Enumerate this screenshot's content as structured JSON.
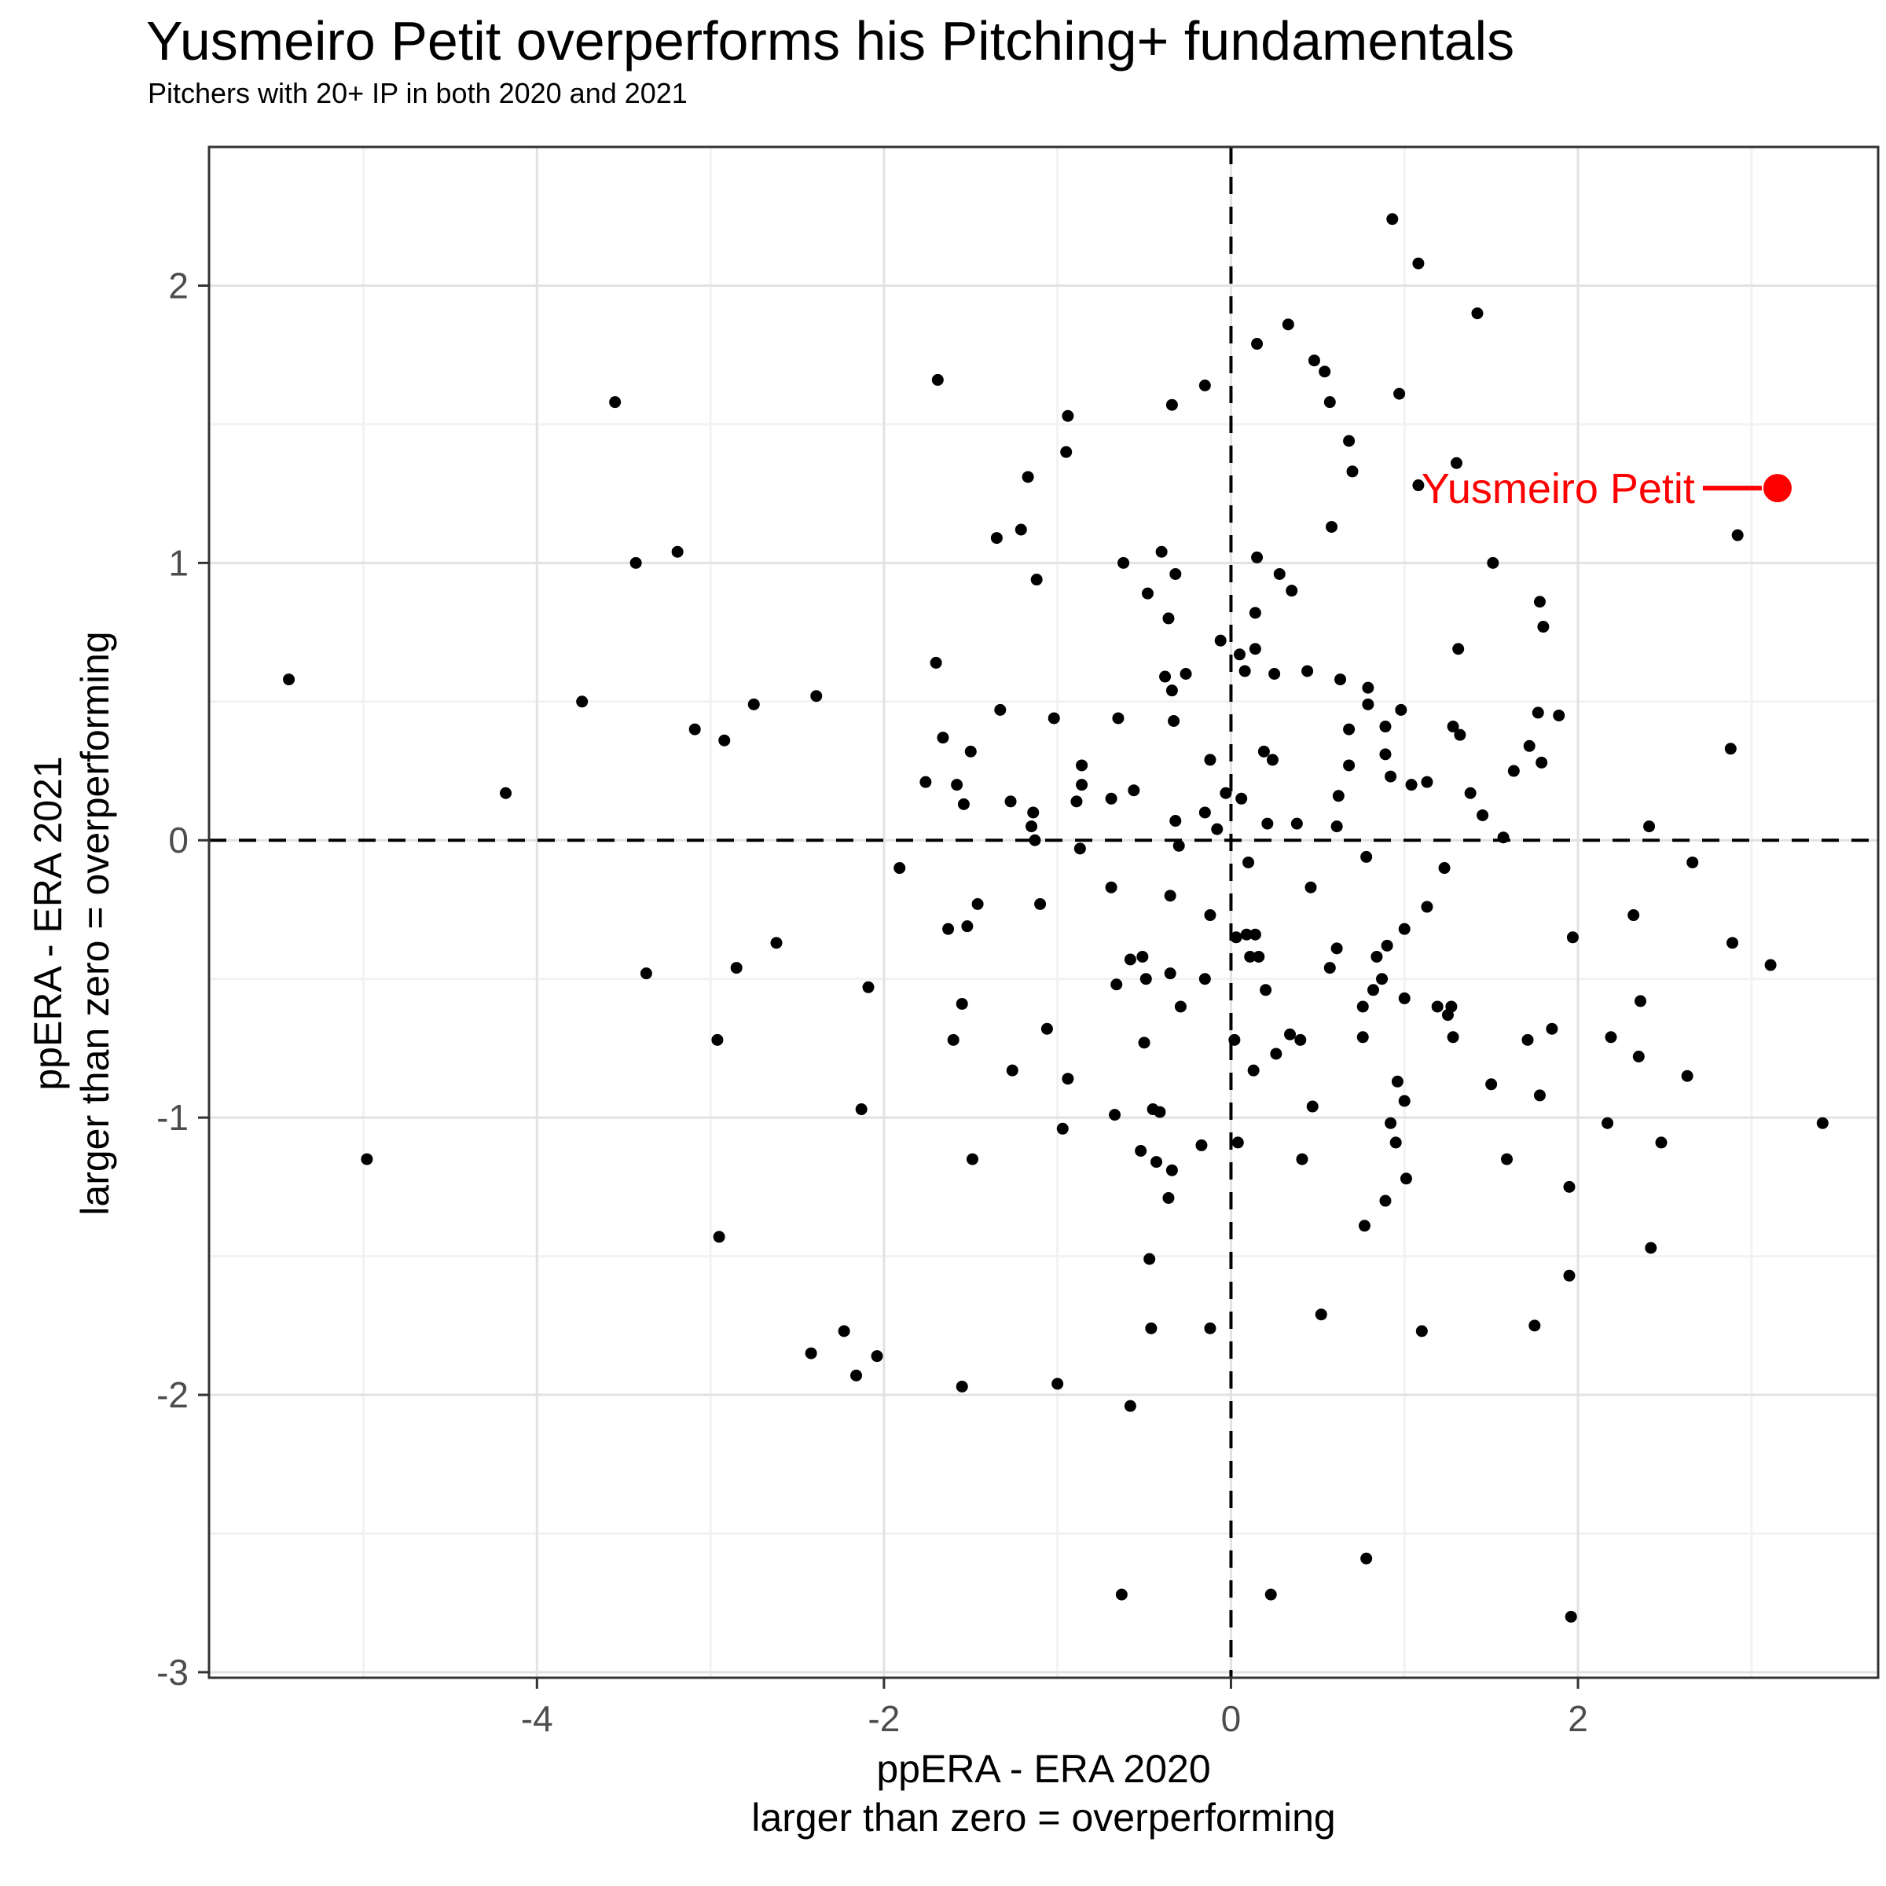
{
  "title": "Yusmeiro Petit overperforms his Pitching+ fundamentals",
  "subtitle": "Pitchers with 20+ IP in both 2020 and 2021",
  "x_axis": {
    "title_line1": "ppERA - ERA 2020",
    "title_line2": "larger than zero = overperforming",
    "tick_labels": [
      "-4",
      "-2",
      "0",
      "2"
    ],
    "ticks": [
      -4,
      -2,
      0,
      2
    ]
  },
  "y_axis": {
    "title_line1": "ppERA - ERA 2021",
    "title_line2": "larger than zero = overperforming",
    "tick_labels": [
      "-3",
      "-2",
      "-1",
      "0",
      "1",
      "2"
    ],
    "ticks": [
      -3,
      -2,
      -1,
      0,
      1,
      2
    ]
  },
  "chart_data": {
    "type": "scatter",
    "title": "Yusmeiro Petit overperforms his Pitching+ fundamentals",
    "subtitle": "Pitchers with 20+ IP in both 2020 and 2021",
    "xlabel": "ppERA - ERA 2020 (larger than zero = overperforming)",
    "ylabel": "ppERA - ERA 2021 (larger than zero = overperforming)",
    "xlim": [
      -5.89,
      3.73
    ],
    "ylim": [
      -3.02,
      2.5
    ],
    "grid": {
      "on": true,
      "major_x": [
        -4,
        -2,
        0,
        2
      ],
      "minor_x": [
        -5,
        -3,
        -1,
        1,
        3
      ],
      "major_y": [
        -3,
        -2,
        -1,
        0,
        1,
        2
      ],
      "minor_y": [
        -2.5,
        -1.5,
        -0.5,
        0.5,
        1.5
      ]
    },
    "reference_lines": {
      "vline_x": 0,
      "hline_y": 0,
      "style": "dashed"
    },
    "colors": {
      "point": "#000000",
      "highlight": "#ff0000",
      "grid_major": "#e2e2e2",
      "grid_minor": "#f2f2f2",
      "panel_border": "#333333",
      "tick_label": "#4d4d4d",
      "background": "#ffffff"
    },
    "highlight": {
      "label": "Yusmeiro Petit",
      "x": 3.15,
      "y": 1.27
    },
    "points": [
      [
        -5.43,
        0.58
      ],
      [
        -4.98,
        -1.15
      ],
      [
        -4.18,
        0.17
      ],
      [
        -3.74,
        0.5
      ],
      [
        -3.55,
        1.58
      ],
      [
        -3.43,
        1.0
      ],
      [
        -3.19,
        1.04
      ],
      [
        -3.09,
        0.4
      ],
      [
        -2.92,
        0.36
      ],
      [
        -2.75,
        0.49
      ],
      [
        -3.37,
        -0.48
      ],
      [
        -2.85,
        -0.46
      ],
      [
        -2.96,
        -0.72
      ],
      [
        -2.95,
        -1.43
      ],
      [
        -2.62,
        -0.37
      ],
      [
        -2.39,
        0.52
      ],
      [
        -2.09,
        -0.53
      ],
      [
        -2.13,
        -0.97
      ],
      [
        -1.91,
        -0.1
      ],
      [
        -2.23,
        -1.77
      ],
      [
        -2.42,
        -1.85
      ],
      [
        -2.16,
        -1.93
      ],
      [
        -2.04,
        -1.86
      ],
      [
        -1.7,
        0.64
      ],
      [
        -1.69,
        1.66
      ],
      [
        -1.66,
        0.37
      ],
      [
        -1.76,
        0.21
      ],
      [
        -1.58,
        0.2
      ],
      [
        -1.54,
        0.13
      ],
      [
        -1.5,
        0.32
      ],
      [
        -1.33,
        0.47
      ],
      [
        -1.27,
        0.14
      ],
      [
        -1.02,
        0.44
      ],
      [
        -1.12,
        0.94
      ],
      [
        -1.17,
        1.31
      ],
      [
        -1.35,
        1.09
      ],
      [
        -1.21,
        1.12
      ],
      [
        -1.14,
        0.1
      ],
      [
        -1.15,
        0.05
      ],
      [
        -1.13,
        0.0
      ],
      [
        -1.46,
        -0.23
      ],
      [
        -1.63,
        -0.32
      ],
      [
        -1.52,
        -0.31
      ],
      [
        -1.1,
        -0.23
      ],
      [
        -1.55,
        -0.59
      ],
      [
        -1.6,
        -0.72
      ],
      [
        -1.06,
        -0.68
      ],
      [
        -1.26,
        -0.83
      ],
      [
        -1.49,
        -1.15
      ],
      [
        -1.55,
        -1.97
      ],
      [
        -1.0,
        -1.96
      ],
      [
        -0.94,
        1.53
      ],
      [
        -0.95,
        1.4
      ],
      [
        -0.62,
        1.0
      ],
      [
        -0.4,
        1.04
      ],
      [
        -0.48,
        0.89
      ],
      [
        -0.32,
        0.96
      ],
      [
        -0.36,
        0.8
      ],
      [
        -0.86,
        0.27
      ],
      [
        -0.86,
        0.2
      ],
      [
        -0.89,
        0.14
      ],
      [
        -0.69,
        0.15
      ],
      [
        -0.56,
        0.18
      ],
      [
        -0.65,
        0.44
      ],
      [
        -0.87,
        -0.03
      ],
      [
        -0.97,
        -1.04
      ],
      [
        -0.94,
        -0.86
      ],
      [
        -0.69,
        -0.17
      ],
      [
        -0.66,
        -0.52
      ],
      [
        -0.58,
        -0.43
      ],
      [
        -0.51,
        -0.42
      ],
      [
        -0.49,
        -0.5
      ],
      [
        -0.38,
        0.59
      ],
      [
        -0.34,
        0.54
      ],
      [
        -0.26,
        0.6
      ],
      [
        -0.33,
        0.43
      ],
      [
        -0.35,
        -0.2
      ],
      [
        -0.35,
        -0.48
      ],
      [
        -0.3,
        -0.02
      ],
      [
        -0.32,
        0.07
      ],
      [
        -0.15,
        0.1
      ],
      [
        -0.12,
        0.29
      ],
      [
        -0.08,
        0.04
      ],
      [
        -0.03,
        0.17
      ],
      [
        -0.12,
        -0.27
      ],
      [
        -0.15,
        -0.5
      ],
      [
        -0.29,
        -0.6
      ],
      [
        -0.5,
        -0.73
      ],
      [
        -0.45,
        -0.97
      ],
      [
        -0.41,
        -0.98
      ],
      [
        -0.67,
        -0.99
      ],
      [
        -0.43,
        -1.16
      ],
      [
        -0.34,
        -1.19
      ],
      [
        -0.52,
        -1.12
      ],
      [
        -0.36,
        -1.29
      ],
      [
        -0.17,
        -1.1
      ],
      [
        -0.47,
        -1.51
      ],
      [
        -0.46,
        -1.76
      ],
      [
        -0.12,
        -1.76
      ],
      [
        -0.58,
        -2.04
      ],
      [
        -0.63,
        -2.72
      ],
      [
        -0.34,
        1.57
      ],
      [
        -0.15,
        1.64
      ],
      [
        0.15,
        1.79
      ],
      [
        0.33,
        1.86
      ],
      [
        0.48,
        1.73
      ],
      [
        0.54,
        1.69
      ],
      [
        0.57,
        1.58
      ],
      [
        0.68,
        1.44
      ],
      [
        0.7,
        1.33
      ],
      [
        0.58,
        1.13
      ],
      [
        0.15,
        1.02
      ],
      [
        0.28,
        0.96
      ],
      [
        0.35,
        0.9
      ],
      [
        0.14,
        0.82
      ],
      [
        -0.06,
        0.72
      ],
      [
        0.05,
        0.67
      ],
      [
        0.14,
        0.69
      ],
      [
        0.08,
        0.61
      ],
      [
        0.25,
        0.6
      ],
      [
        0.44,
        0.61
      ],
      [
        0.63,
        0.58
      ],
      [
        0.79,
        0.55
      ],
      [
        0.19,
        0.32
      ],
      [
        0.24,
        0.29
      ],
      [
        0.06,
        0.15
      ],
      [
        0.21,
        0.06
      ],
      [
        0.38,
        0.06
      ],
      [
        0.1,
        -0.08
      ],
      [
        0.03,
        -0.35
      ],
      [
        0.09,
        -0.34
      ],
      [
        0.14,
        -0.34
      ],
      [
        0.11,
        -0.42
      ],
      [
        0.16,
        -0.42
      ],
      [
        0.46,
        -0.17
      ],
      [
        0.02,
        -0.72
      ],
      [
        0.13,
        -0.83
      ],
      [
        0.26,
        -0.77
      ],
      [
        0.34,
        -0.7
      ],
      [
        0.4,
        -0.72
      ],
      [
        0.2,
        -0.54
      ],
      [
        0.47,
        -0.96
      ],
      [
        0.04,
        -1.09
      ],
      [
        0.41,
        -1.15
      ],
      [
        0.52,
        -1.71
      ],
      [
        0.23,
        -2.72
      ],
      [
        0.57,
        -0.46
      ],
      [
        0.61,
        -0.39
      ],
      [
        0.62,
        0.16
      ],
      [
        0.61,
        0.05
      ],
      [
        0.68,
        0.4
      ],
      [
        0.93,
        2.24
      ],
      [
        1.08,
        2.08
      ],
      [
        1.42,
        1.9
      ],
      [
        0.97,
        1.61
      ],
      [
        1.3,
        1.36
      ],
      [
        1.08,
        1.28
      ],
      [
        1.51,
        1.0
      ],
      [
        1.31,
        0.69
      ],
      [
        0.79,
        0.49
      ],
      [
        0.98,
        0.47
      ],
      [
        0.89,
        0.41
      ],
      [
        1.28,
        0.41
      ],
      [
        1.32,
        0.38
      ],
      [
        0.89,
        0.31
      ],
      [
        0.68,
        0.27
      ],
      [
        0.92,
        0.23
      ],
      [
        1.04,
        0.2
      ],
      [
        1.13,
        0.21
      ],
      [
        1.38,
        0.17
      ],
      [
        1.45,
        0.09
      ],
      [
        1.57,
        0.01
      ],
      [
        0.78,
        -0.06
      ],
      [
        1.23,
        -0.1
      ],
      [
        1.13,
        -0.24
      ],
      [
        1.0,
        -0.32
      ],
      [
        0.9,
        -0.38
      ],
      [
        0.84,
        -0.42
      ],
      [
        0.87,
        -0.5
      ],
      [
        0.82,
        -0.54
      ],
      [
        0.76,
        -0.6
      ],
      [
        1.0,
        -0.57
      ],
      [
        1.19,
        -0.6
      ],
      [
        1.27,
        -0.6
      ],
      [
        1.25,
        -0.63
      ],
      [
        0.76,
        -0.71
      ],
      [
        1.28,
        -0.71
      ],
      [
        0.96,
        -0.87
      ],
      [
        1.0,
        -0.94
      ],
      [
        0.92,
        -1.02
      ],
      [
        0.95,
        -1.09
      ],
      [
        1.01,
        -1.22
      ],
      [
        0.89,
        -1.3
      ],
      [
        0.77,
        -1.39
      ],
      [
        1.1,
        -1.77
      ],
      [
        0.78,
        -2.59
      ],
      [
        1.5,
        -0.88
      ],
      [
        1.59,
        -1.15
      ],
      [
        1.77,
        0.46
      ],
      [
        1.89,
        0.45
      ],
      [
        1.72,
        0.34
      ],
      [
        1.79,
        0.28
      ],
      [
        1.63,
        0.25
      ],
      [
        1.78,
        0.86
      ],
      [
        1.8,
        0.77
      ],
      [
        2.41,
        0.05
      ],
      [
        2.88,
        0.33
      ],
      [
        2.66,
        -0.08
      ],
      [
        2.32,
        -0.27
      ],
      [
        1.97,
        -0.35
      ],
      [
        2.89,
        -0.37
      ],
      [
        3.11,
        -0.45
      ],
      [
        1.71,
        -0.72
      ],
      [
        1.85,
        -0.68
      ],
      [
        2.19,
        -0.71
      ],
      [
        2.36,
        -0.58
      ],
      [
        2.35,
        -0.78
      ],
      [
        2.63,
        -0.85
      ],
      [
        1.78,
        -0.92
      ],
      [
        2.17,
        -1.02
      ],
      [
        3.41,
        -1.02
      ],
      [
        2.48,
        -1.09
      ],
      [
        1.95,
        -1.25
      ],
      [
        1.95,
        -1.57
      ],
      [
        1.75,
        -1.75
      ],
      [
        2.42,
        -1.47
      ],
      [
        1.96,
        -2.8
      ],
      [
        2.92,
        1.1
      ]
    ]
  }
}
